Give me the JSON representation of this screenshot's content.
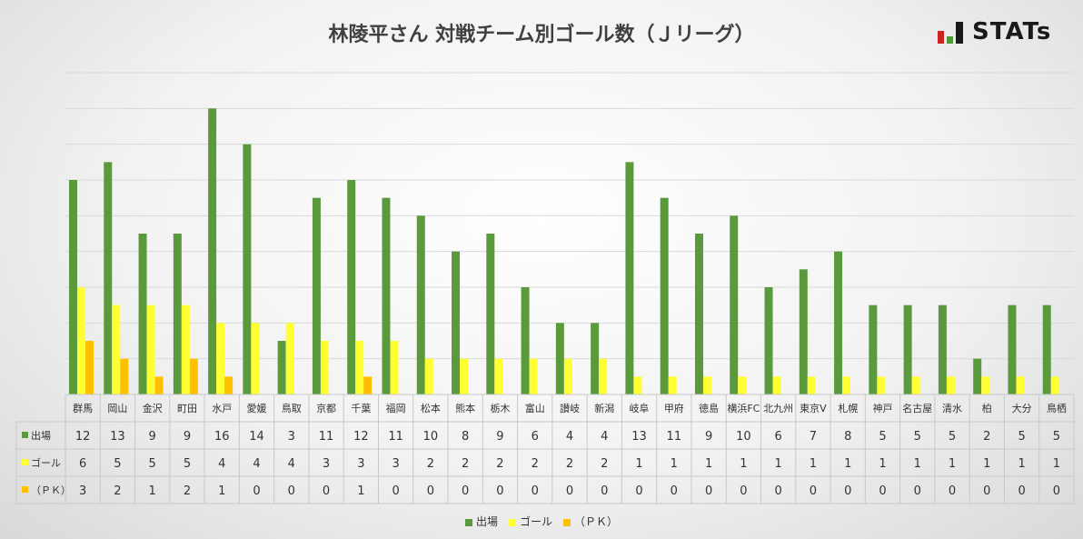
{
  "title": "林陵平さん 対戦チーム別ゴール数（Ｊリーグ）",
  "brand": {
    "name": "STATs",
    "logo": "bar-chart-logo"
  },
  "colors": {
    "appearances": "#5b9a3c",
    "goals": "#ffff33",
    "pk": "#ffc000",
    "grid": "#d9d9d9",
    "table_border": "#c8c8c8"
  },
  "chart_data": {
    "type": "bar",
    "title": "林陵平さん 対戦チーム別ゴール数（Ｊリーグ）",
    "categories": [
      "群馬",
      "岡山",
      "金沢",
      "町田",
      "水戸",
      "愛媛",
      "鳥取",
      "京都",
      "千葉",
      "福岡",
      "松本",
      "熊本",
      "栃木",
      "富山",
      "讃岐",
      "新潟",
      "岐阜",
      "甲府",
      "徳島",
      "横浜FC",
      "北九州",
      "東京V",
      "札幌",
      "神戸",
      "名古屋",
      "清水",
      "柏",
      "大分",
      "鳥栖"
    ],
    "series": [
      {
        "name": "出場",
        "values": [
          12,
          13,
          9,
          9,
          16,
          14,
          3,
          11,
          12,
          11,
          10,
          8,
          9,
          6,
          4,
          4,
          13,
          11,
          9,
          10,
          6,
          7,
          8,
          5,
          5,
          5,
          2,
          5,
          5
        ]
      },
      {
        "name": "ゴール",
        "values": [
          6,
          5,
          5,
          5,
          4,
          4,
          4,
          3,
          3,
          3,
          2,
          2,
          2,
          2,
          2,
          2,
          1,
          1,
          1,
          1,
          1,
          1,
          1,
          1,
          1,
          1,
          1,
          1,
          1
        ]
      },
      {
        "name": "（ＰＫ）",
        "values": [
          3,
          2,
          1,
          2,
          1,
          0,
          0,
          0,
          1,
          0,
          0,
          0,
          0,
          0,
          0,
          0,
          0,
          0,
          0,
          0,
          0,
          0,
          0,
          0,
          0,
          0,
          0,
          0,
          0
        ]
      }
    ],
    "ylim": [
      0,
      18
    ],
    "grid": true,
    "legend": "bottom",
    "data_table": true
  }
}
